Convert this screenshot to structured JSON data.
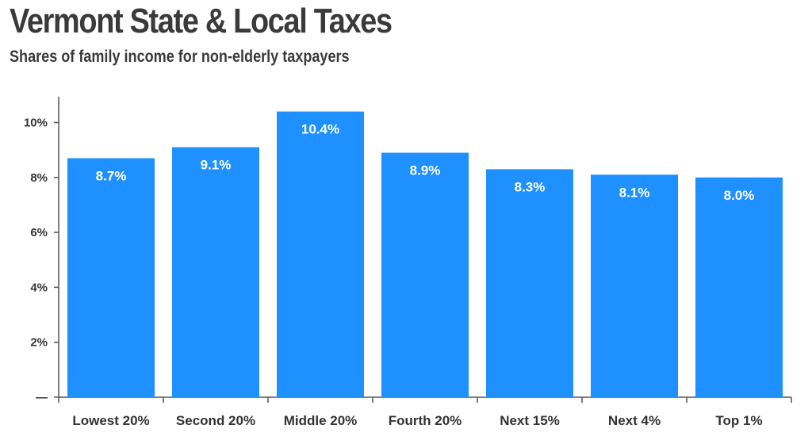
{
  "chart_data": {
    "type": "bar",
    "title": "Vermont State & Local Taxes",
    "subtitle": "Shares of family income for non-elderly taxpayers",
    "categories": [
      "Lowest 20%",
      "Second 20%",
      "Middle 20%",
      "Fourth 20%",
      "Next 15%",
      "Next 4%",
      "Top 1%"
    ],
    "values": [
      8.7,
      9.1,
      10.4,
      8.9,
      8.3,
      8.1,
      8.0
    ],
    "data_labels": [
      "8.7%",
      "9.1%",
      "10.4%",
      "8.9%",
      "8.3%",
      "8.1%",
      "8.0%"
    ],
    "yticks": [
      0,
      2,
      4,
      6,
      8,
      10
    ],
    "ytick_labels": [
      "—",
      "2%",
      "4%",
      "6%",
      "8%",
      "10%"
    ],
    "ylim": [
      0,
      11
    ],
    "xlabel": "",
    "ylabel": "",
    "grid": false,
    "bar_color": "#1e90ff"
  }
}
